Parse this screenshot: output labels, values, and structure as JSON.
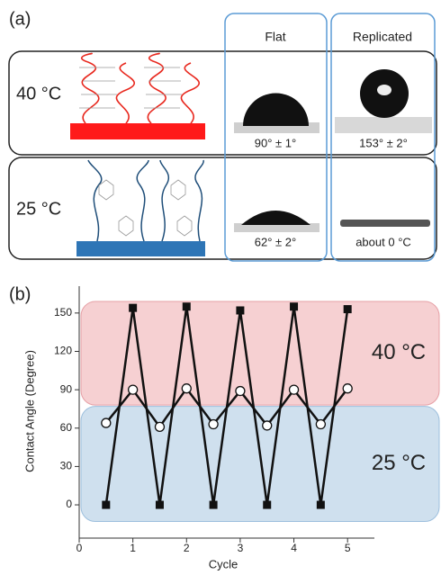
{
  "panel_a": {
    "label": "(a)",
    "columns": [
      "Flat",
      "Replicated"
    ],
    "rows": [
      {
        "label": "40 °C",
        "flat": "90° ± 1°",
        "replicated": "153° ± 2°"
      },
      {
        "label": "25 °C",
        "flat": "62° ± 2°",
        "replicated": "about 0 °C"
      }
    ]
  },
  "chart_data": {
    "type": "line",
    "panel_label": "(b)",
    "x_label": "Cycle",
    "y_label": "Contact Angle (Degree)",
    "xlim": [
      0,
      5.5
    ],
    "xticks": [
      0,
      1,
      2,
      3,
      4,
      5
    ],
    "ylim": [
      -26,
      171
    ],
    "yticks": [
      0,
      30,
      60,
      90,
      120,
      150
    ],
    "bands": [
      {
        "label": "40 °C",
        "range": [
          78,
          159
        ],
        "color": "#f6d0d2"
      },
      {
        "label": "25 °C",
        "range": [
          -13,
          77
        ],
        "color": "#cfe0ee"
      }
    ],
    "series": [
      {
        "marker": "square",
        "color": "#111111",
        "x": [
          0.5,
          1,
          1.5,
          2,
          2.5,
          3,
          3.5,
          4,
          4.5,
          5
        ],
        "values": [
          0,
          154,
          0,
          155,
          0,
          152,
          0,
          155,
          0,
          153
        ]
      },
      {
        "marker": "circle",
        "color": "#111111",
        "x": [
          0.5,
          1,
          1.5,
          2,
          2.5,
          3,
          3.5,
          4,
          4.5,
          5
        ],
        "values": [
          64,
          90,
          61,
          91,
          63,
          89,
          62,
          90,
          63,
          91
        ]
      }
    ]
  }
}
